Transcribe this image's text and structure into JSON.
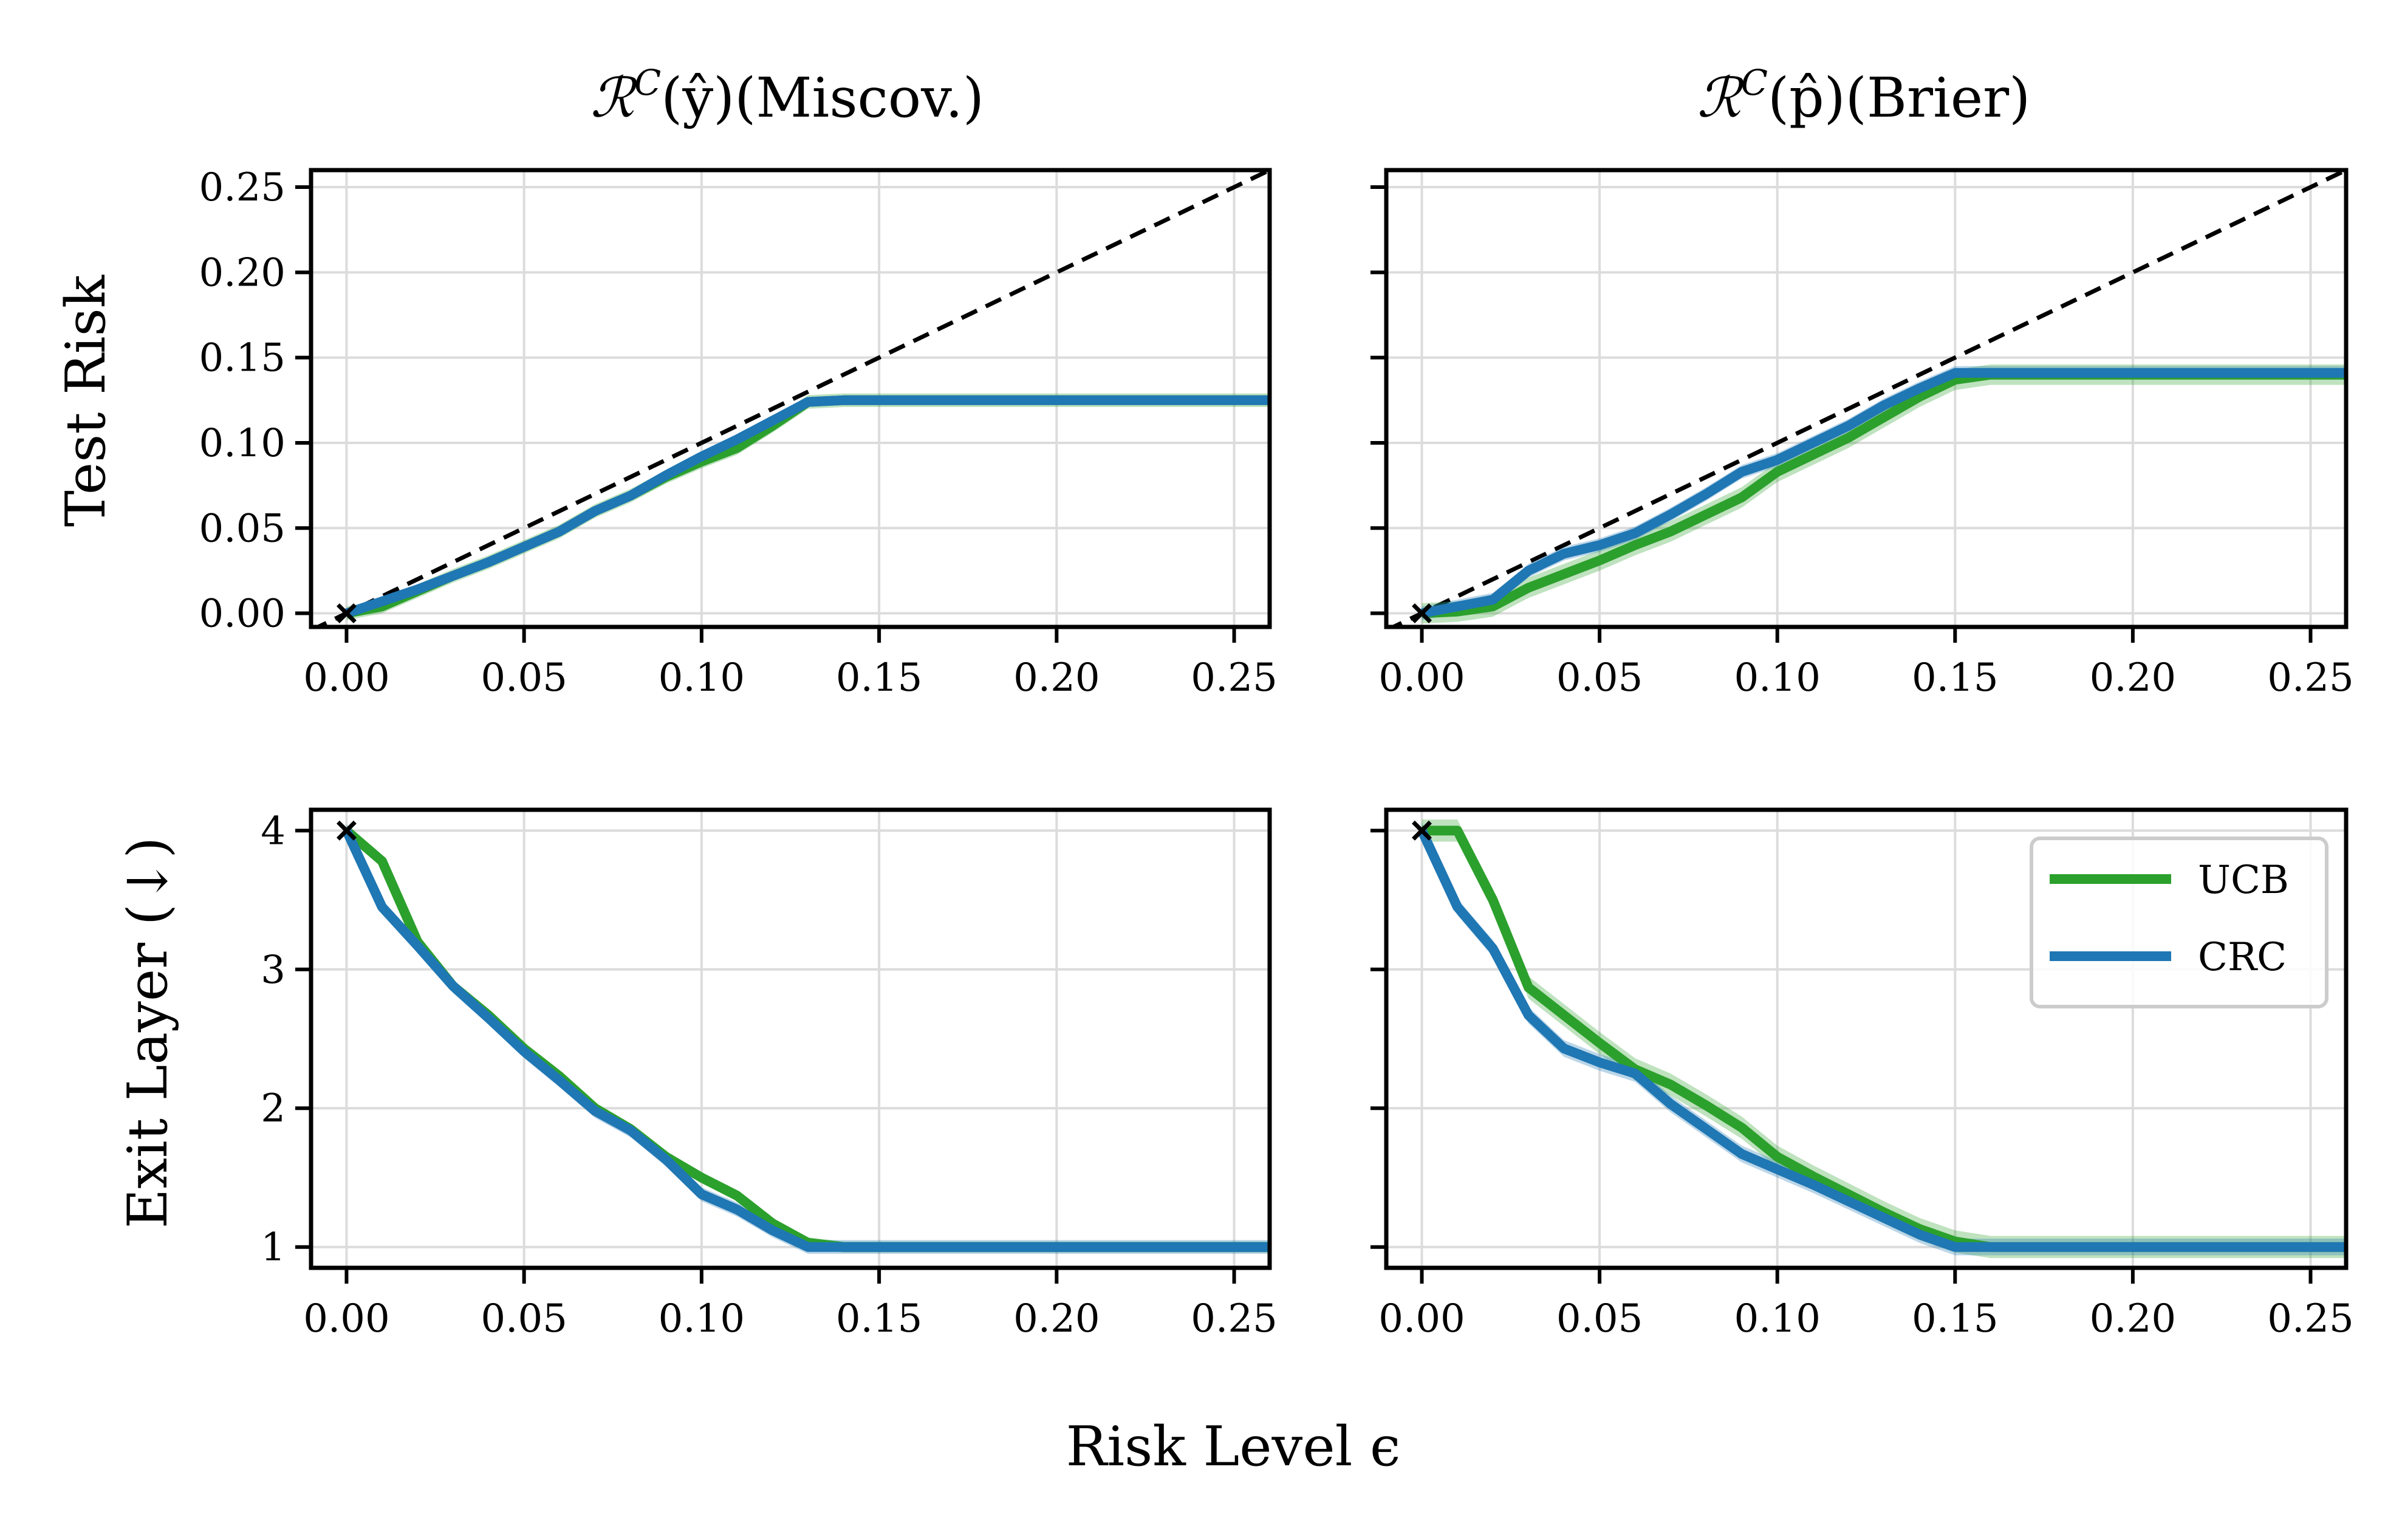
{
  "figure": {
    "xlabel": "Risk Level ϵ",
    "row_ylabels": [
      "Test Risk",
      "Exit Layer (↓)"
    ],
    "column_titles": [
      {
        "symbol": "ℛ",
        "sup": "C",
        "arg": "(ŷ)",
        "suffix": "(Miscov.)"
      },
      {
        "symbol": "ℛ",
        "sup": "C",
        "arg": "(p̂)",
        "suffix": "(Brier)"
      }
    ],
    "legend": [
      {
        "name": "UCB",
        "color": "#2ca02c"
      },
      {
        "name": "CRC",
        "color": "#1f77b4"
      }
    ],
    "colors": {
      "ucb": "#2ca02c",
      "crc": "#1f77b4"
    }
  },
  "chart_data": [
    {
      "type": "line",
      "panel": "top-left",
      "title": "ℛC(ŷ)(Miscov.)",
      "xlabel": "Risk Level ϵ",
      "ylabel": "Test Risk",
      "xlim": [
        -0.01,
        0.26
      ],
      "ylim": [
        -0.008,
        0.26
      ],
      "xticks": [
        0.0,
        0.05,
        0.1,
        0.15,
        0.2,
        0.25
      ],
      "xtick_labels": [
        "0.00",
        "0.05",
        "0.10",
        "0.15",
        "0.20",
        "0.25"
      ],
      "yticks": [
        0.0,
        0.05,
        0.1,
        0.15,
        0.2,
        0.25
      ],
      "ytick_labels": [
        "0.00",
        "0.05",
        "0.10",
        "0.15",
        "0.20",
        "0.25"
      ],
      "reference_line": "y = x (dashed)",
      "marker_at_origin": "x",
      "x": [
        0,
        0.01,
        0.02,
        0.03,
        0.04,
        0.05,
        0.06,
        0.07,
        0.08,
        0.09,
        0.1,
        0.11,
        0.12,
        0.13,
        0.14,
        0.15,
        0.2,
        0.26
      ],
      "series": [
        {
          "name": "UCB",
          "band": 0.004,
          "values": [
            0,
            0.004,
            0.013,
            0.022,
            0.03,
            0.039,
            0.048,
            0.06,
            0.069,
            0.08,
            0.089,
            0.097,
            0.11,
            0.124,
            0.125,
            0.125,
            0.125,
            0.125
          ]
        },
        {
          "name": "CRC",
          "band": 0.002,
          "values": [
            0,
            0.007,
            0.014,
            0.022,
            0.03,
            0.039,
            0.048,
            0.06,
            0.069,
            0.081,
            0.092,
            0.102,
            0.113,
            0.124,
            0.125,
            0.125,
            0.125,
            0.125
          ]
        }
      ]
    },
    {
      "type": "line",
      "panel": "top-right",
      "title": "ℛC(p̂)(Brier)",
      "xlabel": "Risk Level ϵ",
      "ylabel": "",
      "xlim": [
        -0.01,
        0.26
      ],
      "ylim": [
        -0.008,
        0.26
      ],
      "xticks": [
        0.0,
        0.05,
        0.1,
        0.15,
        0.2,
        0.25
      ],
      "xtick_labels": [
        "0.00",
        "0.05",
        "0.10",
        "0.15",
        "0.20",
        "0.25"
      ],
      "yticks": [
        0.0,
        0.05,
        0.1,
        0.15,
        0.2,
        0.25
      ],
      "ytick_labels": [],
      "reference_line": "y = x (dashed)",
      "marker_at_origin": "x",
      "x": [
        0,
        0.01,
        0.02,
        0.03,
        0.04,
        0.05,
        0.06,
        0.07,
        0.08,
        0.09,
        0.1,
        0.11,
        0.12,
        0.13,
        0.14,
        0.15,
        0.16,
        0.2,
        0.26
      ],
      "series": [
        {
          "name": "UCB",
          "band": 0.006,
          "values": [
            0,
            0.001,
            0.004,
            0.015,
            0.023,
            0.031,
            0.04,
            0.048,
            0.058,
            0.068,
            0.083,
            0.093,
            0.103,
            0.115,
            0.127,
            0.137,
            0.14,
            0.14,
            0.14
          ]
        },
        {
          "name": "CRC",
          "band": 0.004,
          "values": [
            0,
            0.004,
            0.008,
            0.025,
            0.035,
            0.04,
            0.047,
            0.058,
            0.07,
            0.083,
            0.09,
            0.1,
            0.11,
            0.122,
            0.132,
            0.141,
            0.141,
            0.141,
            0.141
          ]
        }
      ]
    },
    {
      "type": "line",
      "panel": "bottom-left",
      "title": "",
      "xlabel": "Risk Level ϵ",
      "ylabel": "Exit Layer (↓)",
      "xlim": [
        -0.01,
        0.26
      ],
      "ylim": [
        0.85,
        4.15
      ],
      "xticks": [
        0.0,
        0.05,
        0.1,
        0.15,
        0.2,
        0.25
      ],
      "xtick_labels": [
        "0.00",
        "0.05",
        "0.10",
        "0.15",
        "0.20",
        "0.25"
      ],
      "yticks": [
        1,
        2,
        3,
        4
      ],
      "ytick_labels": [
        "1",
        "2",
        "3",
        "4"
      ],
      "marker_at_origin": "x",
      "x": [
        0,
        0.01,
        0.02,
        0.03,
        0.04,
        0.05,
        0.06,
        0.07,
        0.08,
        0.09,
        0.1,
        0.11,
        0.12,
        0.13,
        0.14,
        0.15,
        0.2,
        0.26
      ],
      "series": [
        {
          "name": "UCB",
          "band": 0.04,
          "values": [
            4.0,
            3.78,
            3.2,
            2.88,
            2.67,
            2.43,
            2.23,
            2.0,
            1.85,
            1.65,
            1.5,
            1.37,
            1.17,
            1.03,
            1.0,
            1.0,
            1.0,
            1.0
          ]
        },
        {
          "name": "CRC",
          "band": 0.05,
          "values": [
            4.0,
            3.45,
            3.17,
            2.88,
            2.65,
            2.41,
            2.2,
            1.98,
            1.84,
            1.63,
            1.38,
            1.27,
            1.12,
            1.0,
            1.0,
            1.0,
            1.0,
            1.0
          ]
        }
      ]
    },
    {
      "type": "line",
      "panel": "bottom-right",
      "title": "",
      "xlabel": "Risk Level ϵ",
      "ylabel": "",
      "xlim": [
        -0.01,
        0.26
      ],
      "ylim": [
        0.85,
        4.15
      ],
      "xticks": [
        0.0,
        0.05,
        0.1,
        0.15,
        0.2,
        0.25
      ],
      "xtick_labels": [
        "0.00",
        "0.05",
        "0.10",
        "0.15",
        "0.20",
        "0.25"
      ],
      "yticks": [
        1,
        2,
        3,
        4
      ],
      "ytick_labels": [],
      "marker_at_origin": "x",
      "legend": [
        "UCB",
        "CRC"
      ],
      "legend_position": "upper right",
      "x": [
        0,
        0.01,
        0.02,
        0.03,
        0.04,
        0.05,
        0.06,
        0.07,
        0.08,
        0.09,
        0.1,
        0.11,
        0.12,
        0.13,
        0.14,
        0.15,
        0.16,
        0.2,
        0.26
      ],
      "series": [
        {
          "name": "UCB",
          "band": 0.08,
          "values": [
            4.0,
            4.0,
            3.5,
            2.87,
            2.67,
            2.47,
            2.28,
            2.17,
            2.02,
            1.86,
            1.65,
            1.51,
            1.38,
            1.25,
            1.13,
            1.04,
            1.0,
            1.0,
            1.0
          ]
        },
        {
          "name": "CRC",
          "band": 0.06,
          "values": [
            4.0,
            3.45,
            3.15,
            2.67,
            2.43,
            2.33,
            2.25,
            2.03,
            1.85,
            1.67,
            1.56,
            1.45,
            1.33,
            1.21,
            1.09,
            1.0,
            1.0,
            1.0,
            1.0
          ]
        }
      ]
    }
  ]
}
